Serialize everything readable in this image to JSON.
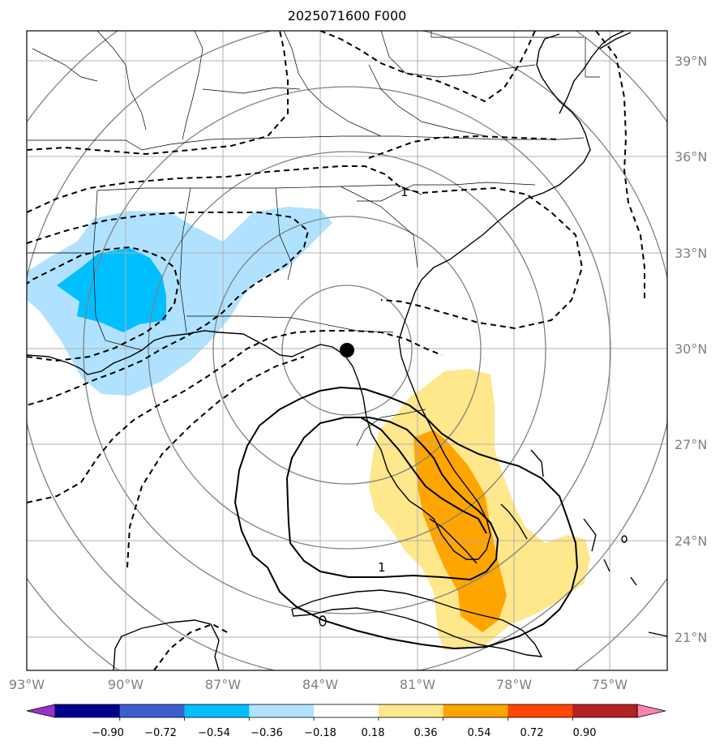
{
  "title": "2025071600 F000",
  "lon_labels": [
    "93°W",
    "90°W",
    "87°W",
    "84°W",
    "81°W",
    "78°W",
    "75°W"
  ],
  "lat_labels": [
    "39°N",
    "36°N",
    "33°N",
    "30°N",
    "27°N",
    "24°N",
    "21°N"
  ],
  "colorbar": {
    "ticks": [
      "−0.90",
      "−0.72",
      "−0.54",
      "−0.36",
      "−0.18",
      "0.18",
      "0.36",
      "0.54",
      "0.72",
      "0.90"
    ],
    "colors": [
      "#9b30d0",
      "#00008b",
      "#3a5fcd",
      "#00bfff",
      "#b0e2ff",
      "#ffffff",
      "#ffe78b",
      "#ffa500",
      "#ff4500",
      "#b22222",
      "#ff82ab"
    ]
  },
  "contour_labels": [
    "1",
    "1"
  ],
  "marker": "storm-center"
}
